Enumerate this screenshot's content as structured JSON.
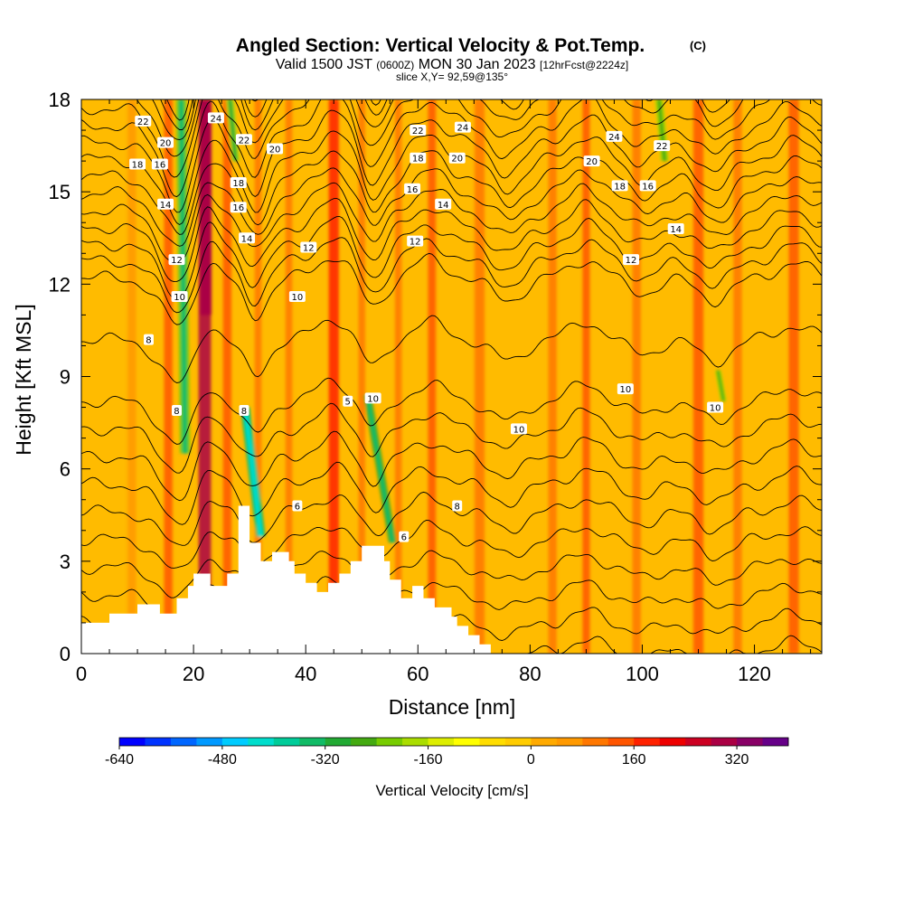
{
  "chart_data": {
    "type": "heatmap",
    "title": "Angled Section: Vertical Velocity & Pot.Temp.",
    "title_unit": "(C)",
    "subtitle_parts": [
      "Valid 1500 JST ",
      "(0600Z)",
      " MON 30 Jan 2023 ",
      "[12hrFcst@2224z]"
    ],
    "slice_info": "slice X,Y= 92,59@135°",
    "xlabel": "Distance [nm]",
    "ylabel": "Height [Kft MSL]",
    "xlim": [
      0,
      132
    ],
    "ylim": [
      0,
      18
    ],
    "x_ticks": [
      0,
      20,
      40,
      60,
      80,
      100,
      120
    ],
    "y_ticks": [
      0,
      3,
      6,
      9,
      12,
      15,
      18
    ],
    "colorbar": {
      "label": "Vertical Velocity [cm/s]",
      "ticks": [
        "-640",
        "-480",
        "-320",
        "-160",
        "0",
        "160",
        "320"
      ],
      "min": -640,
      "max": 400,
      "colors": [
        "#0000ff",
        "#0033ff",
        "#0066ff",
        "#0099ff",
        "#00ccff",
        "#00ddcc",
        "#00cc99",
        "#11bb66",
        "#22aa33",
        "#44aa11",
        "#77cc00",
        "#aadd00",
        "#ddee00",
        "#ffff00",
        "#ffdd00",
        "#ffcc00",
        "#ffaa00",
        "#ff9900",
        "#ff7700",
        "#ff5500",
        "#ff2200",
        "#ee0000",
        "#cc0022",
        "#aa0044",
        "#880066",
        "#660088"
      ]
    },
    "terrain": [
      [
        0,
        1.0
      ],
      [
        5,
        1.0
      ],
      [
        5,
        1.3
      ],
      [
        10,
        1.3
      ],
      [
        10,
        1.6
      ],
      [
        14,
        1.6
      ],
      [
        14,
        1.3
      ],
      [
        17,
        1.3
      ],
      [
        17,
        1.8
      ],
      [
        19,
        1.8
      ],
      [
        19,
        2.2
      ],
      [
        20,
        2.2
      ],
      [
        20,
        2.6
      ],
      [
        23,
        2.6
      ],
      [
        23,
        2.2
      ],
      [
        26,
        2.2
      ],
      [
        26,
        2.6
      ],
      [
        28,
        2.6
      ],
      [
        28,
        4.8
      ],
      [
        30,
        4.8
      ],
      [
        30,
        3.6
      ],
      [
        32,
        3.6
      ],
      [
        32,
        3.0
      ],
      [
        34,
        3.0
      ],
      [
        34,
        3.3
      ],
      [
        37,
        3.3
      ],
      [
        37,
        3.0
      ],
      [
        38,
        3.0
      ],
      [
        38,
        2.6
      ],
      [
        40,
        2.6
      ],
      [
        40,
        2.3
      ],
      [
        42,
        2.3
      ],
      [
        42,
        2.0
      ],
      [
        44,
        2.0
      ],
      [
        44,
        2.3
      ],
      [
        46,
        2.3
      ],
      [
        46,
        2.6
      ],
      [
        48,
        2.6
      ],
      [
        48,
        3.0
      ],
      [
        50,
        3.0
      ],
      [
        50,
        3.5
      ],
      [
        54,
        3.5
      ],
      [
        54,
        3.0
      ],
      [
        55,
        3.0
      ],
      [
        55,
        2.4
      ],
      [
        57,
        2.4
      ],
      [
        57,
        1.8
      ],
      [
        59,
        1.8
      ],
      [
        59,
        2.2
      ],
      [
        61,
        2.2
      ],
      [
        61,
        1.8
      ],
      [
        63,
        1.8
      ],
      [
        63,
        1.5
      ],
      [
        66,
        1.5
      ],
      [
        66,
        1.2
      ],
      [
        67,
        1.2
      ],
      [
        67,
        0.9
      ],
      [
        69,
        0.9
      ],
      [
        69,
        0.6
      ],
      [
        71,
        0.6
      ],
      [
        71,
        0.3
      ],
      [
        73,
        0.3
      ],
      [
        73,
        0
      ],
      [
        132,
        0
      ]
    ],
    "updraft_columns": [
      {
        "x": 9,
        "w": 1.5,
        "value": 60
      },
      {
        "x": 15.5,
        "w": 1.5,
        "value": 120
      },
      {
        "x": 22,
        "w": 2.2,
        "value": 280
      },
      {
        "x": 26,
        "w": 1.5,
        "value": 120
      },
      {
        "x": 31.5,
        "w": 1.2,
        "value": 100
      },
      {
        "x": 37,
        "w": 1.2,
        "value": 100
      },
      {
        "x": 45,
        "w": 1.8,
        "value": 160
      },
      {
        "x": 50,
        "w": 1.2,
        "value": 80
      },
      {
        "x": 56.5,
        "w": 1.2,
        "value": 100
      },
      {
        "x": 62.5,
        "w": 1.4,
        "value": 130
      },
      {
        "x": 71,
        "w": 1.8,
        "value": 110
      },
      {
        "x": 84,
        "w": 1.5,
        "value": 100
      },
      {
        "x": 90,
        "w": 1.3,
        "value": 150
      },
      {
        "x": 99,
        "w": 1.5,
        "value": 100
      },
      {
        "x": 110,
        "w": 1.8,
        "value": 130
      },
      {
        "x": 117,
        "w": 1.5,
        "value": 90
      },
      {
        "x": 127,
        "w": 1.8,
        "value": 120
      }
    ],
    "downdraft_bands": [
      {
        "x1": 18.5,
        "y1": 6.5,
        "x2": 17.8,
        "y2": 18,
        "w": 1.8,
        "value": -240
      },
      {
        "x1": 27.5,
        "y1": 16,
        "x2": 26.5,
        "y2": 18,
        "w": 1.4,
        "value": -200
      },
      {
        "x1": 32,
        "y1": 3.8,
        "x2": 29.2,
        "y2": 8.0,
        "w": 1.6,
        "value": -330
      },
      {
        "x1": 55.5,
        "y1": 3.6,
        "x2": 51,
        "y2": 8.4,
        "w": 1.4,
        "value": -260
      },
      {
        "x1": 104,
        "y1": 16,
        "x2": 103,
        "y2": 18,
        "w": 1.4,
        "value": -180
      },
      {
        "x1": 114.5,
        "y1": 8.2,
        "x2": 113.5,
        "y2": 9.2,
        "w": 1.0,
        "value": -180
      }
    ],
    "theta_levels": [
      2,
      4,
      6,
      8,
      10,
      12,
      14,
      16,
      18,
      20,
      22,
      24
    ],
    "contour_labels": [
      {
        "text": "22",
        "x": 11,
        "y": 17.3
      },
      {
        "text": "20",
        "x": 15,
        "y": 16.6
      },
      {
        "text": "18",
        "x": 10,
        "y": 15.9
      },
      {
        "text": "16",
        "x": 14,
        "y": 15.9
      },
      {
        "text": "14",
        "x": 15,
        "y": 14.6
      },
      {
        "text": "12",
        "x": 17,
        "y": 12.8
      },
      {
        "text": "10",
        "x": 17.5,
        "y": 11.6
      },
      {
        "text": "8",
        "x": 12,
        "y": 10.2
      },
      {
        "text": "8",
        "x": 17,
        "y": 7.9
      },
      {
        "text": "24",
        "x": 24,
        "y": 17.4
      },
      {
        "text": "22",
        "x": 29,
        "y": 16.7
      },
      {
        "text": "20",
        "x": 34.5,
        "y": 16.4
      },
      {
        "text": "18",
        "x": 28,
        "y": 15.3
      },
      {
        "text": "16",
        "x": 28,
        "y": 14.5
      },
      {
        "text": "14",
        "x": 29.5,
        "y": 13.5
      },
      {
        "text": "12",
        "x": 40.5,
        "y": 13.2
      },
      {
        "text": "10",
        "x": 38.5,
        "y": 11.6
      },
      {
        "text": "8",
        "x": 29,
        "y": 7.9
      },
      {
        "text": "6",
        "x": 38.5,
        "y": 4.8
      },
      {
        "text": "5",
        "x": 47.5,
        "y": 8.2
      },
      {
        "text": "10",
        "x": 52,
        "y": 8.3
      },
      {
        "text": "6",
        "x": 57.5,
        "y": 3.8
      },
      {
        "text": "8",
        "x": 67,
        "y": 4.8
      },
      {
        "text": "22",
        "x": 60,
        "y": 17.0
      },
      {
        "text": "24",
        "x": 68,
        "y": 17.1
      },
      {
        "text": "18",
        "x": 60,
        "y": 16.1
      },
      {
        "text": "20",
        "x": 67,
        "y": 16.1
      },
      {
        "text": "16",
        "x": 59,
        "y": 15.1
      },
      {
        "text": "14",
        "x": 64.5,
        "y": 14.6
      },
      {
        "text": "12",
        "x": 59.5,
        "y": 13.4
      },
      {
        "text": "10",
        "x": 78,
        "y": 7.3
      },
      {
        "text": "24",
        "x": 95,
        "y": 16.8
      },
      {
        "text": "20",
        "x": 91,
        "y": 16.0
      },
      {
        "text": "22",
        "x": 103.5,
        "y": 16.5
      },
      {
        "text": "18",
        "x": 96,
        "y": 15.2
      },
      {
        "text": "16",
        "x": 101,
        "y": 15.2
      },
      {
        "text": "14",
        "x": 106,
        "y": 13.8
      },
      {
        "text": "12",
        "x": 98,
        "y": 12.8
      },
      {
        "text": "10",
        "x": 97,
        "y": 8.6
      },
      {
        "text": "10",
        "x": 113,
        "y": 8.0
      }
    ]
  }
}
